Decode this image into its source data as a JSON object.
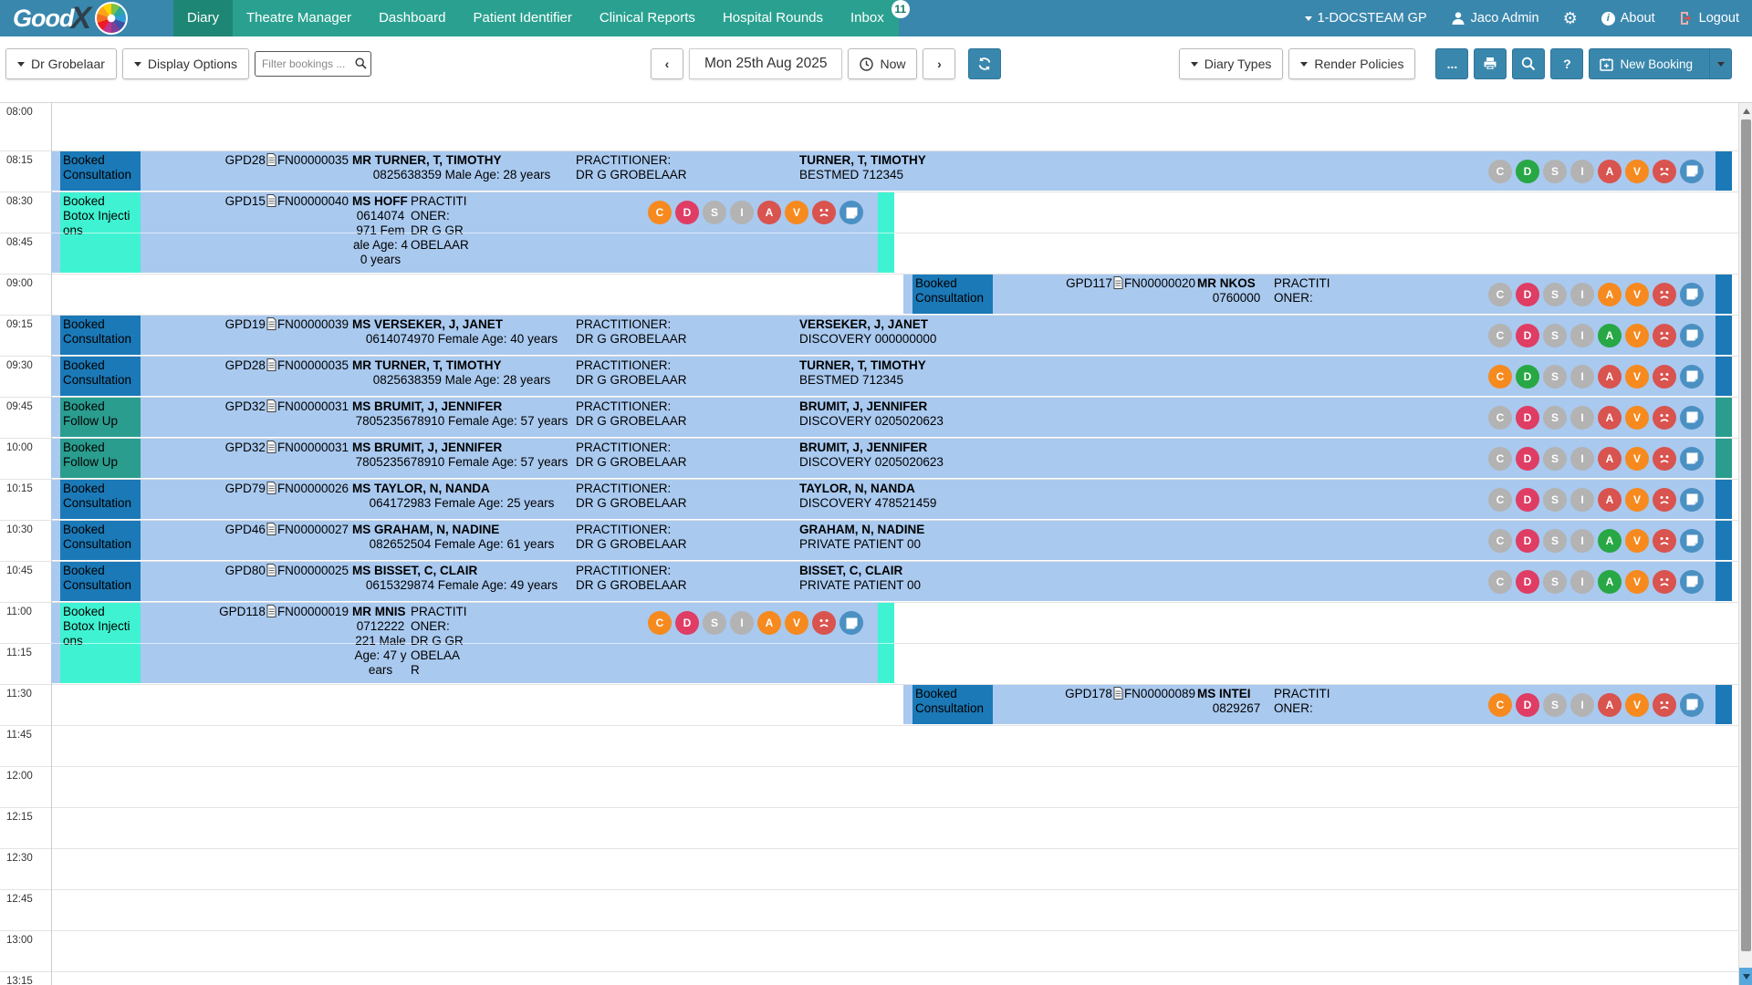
{
  "header": {
    "logo": {
      "good": "Good",
      "x": "X"
    },
    "nav": [
      {
        "label": "Diary",
        "active": true
      },
      {
        "label": "Theatre Manager"
      },
      {
        "label": "Dashboard"
      },
      {
        "label": "Patient Identifier"
      },
      {
        "label": "Clinical Reports"
      },
      {
        "label": "Hospital Rounds"
      },
      {
        "label": "Inbox",
        "badge": "11"
      }
    ],
    "right": {
      "account": "1-DOCSTEAM GP",
      "user": "Jaco Admin",
      "about": "About",
      "logout": "Logout"
    }
  },
  "toolbar": {
    "practitioner": "Dr Grobelaar",
    "display_options": "Display Options",
    "filter_placeholder": "Filter bookings ...",
    "date": "Mon 25th Aug 2025",
    "now": "Now",
    "diary_types": "Diary Types",
    "render_policies": "Render Policies",
    "more": "...",
    "help": "?",
    "new_booking": "New Booking"
  },
  "colors": {
    "header_blue": "#3a87ad",
    "menu_teal": "#2aa190",
    "menu_active": "#1d8674",
    "row_bg": "#a9c9ef",
    "consultation": "#1b79b7",
    "follow_up": "#2a9d8f",
    "botox": "#3ff3d2",
    "icon_gray": "#b3b3b3",
    "icon_green": "#28a745",
    "icon_red": "#d9534f",
    "icon_orange": "#f68a1f",
    "icon_crimson": "#df3d64",
    "icon_blue": "#4b90c2"
  },
  "grid": {
    "times": [
      "08:00",
      "08:15",
      "08:30",
      "08:45",
      "09:00",
      "09:15",
      "09:30",
      "09:45",
      "10:00",
      "10:15",
      "10:30",
      "10:45",
      "11:00",
      "11:15",
      "11:30",
      "11:45",
      "12:00",
      "12:15",
      "12:30",
      "12:45",
      "13:00",
      "13:15"
    ]
  },
  "bookings": [
    {
      "row": 1,
      "span": 1,
      "side": "full",
      "type": "consult",
      "type_lines": [
        "Booked",
        "Consultation"
      ],
      "file": "GPD28",
      "fn": "FN00000035",
      "name": "MR TURNER, T, TIMOTHY",
      "details": [
        "0825638359 Male Age: 28 years"
      ],
      "practitioner": [
        "PRACTITIONER:",
        "DR G GROBELAAR"
      ],
      "member": [
        "TURNER, T, TIMOTHY",
        "BESTMED 712345"
      ],
      "icons": [
        [
          "C",
          "gray"
        ],
        [
          "D",
          "green"
        ],
        [
          "S",
          "gray"
        ],
        [
          "I",
          "gray"
        ],
        [
          "A",
          "red"
        ],
        [
          "V",
          "orange"
        ],
        [
          "frown",
          "red"
        ],
        [
          "note",
          "blue"
        ]
      ]
    },
    {
      "row": 2,
      "span": 2,
      "side": "left",
      "type": "botox",
      "type_lines": [
        "Booked",
        "Botox Injecti",
        "ons"
      ],
      "file": "GPD15",
      "fn": "FN00000040",
      "name": "MS HOFF",
      "details": [
        "0614074",
        "971 Fem",
        "ale Age: 4",
        "0 years"
      ],
      "practitioner": [
        "PRACTITI",
        "ONER:",
        "DR G GR",
        "OBELAAR"
      ],
      "member": [],
      "icons": [
        [
          "C",
          "orange"
        ],
        [
          "D",
          "crimson"
        ],
        [
          "S",
          "gray"
        ],
        [
          "I",
          "gray"
        ],
        [
          "A",
          "red"
        ],
        [
          "V",
          "orange"
        ],
        [
          "frown",
          "red"
        ],
        [
          "note",
          "blue"
        ]
      ]
    },
    {
      "row": 4,
      "span": 1,
      "side": "right",
      "type": "consult",
      "type_lines": [
        "Booked",
        "Consultation"
      ],
      "file": "GPD117",
      "fn": "FN00000020",
      "name": "MR NKOS",
      "details": [
        "0760000"
      ],
      "practitioner": [
        "PRACTITI",
        "ONER:"
      ],
      "member": [],
      "icons": [
        [
          "C",
          "gray"
        ],
        [
          "D",
          "crimson"
        ],
        [
          "S",
          "gray"
        ],
        [
          "I",
          "gray"
        ],
        [
          "A",
          "orange"
        ],
        [
          "V",
          "orange"
        ],
        [
          "frown",
          "red"
        ],
        [
          "note",
          "blue"
        ]
      ]
    },
    {
      "row": 5,
      "span": 1,
      "side": "full",
      "type": "consult",
      "type_lines": [
        "Booked",
        "Consultation"
      ],
      "file": "GPD19",
      "fn": "FN00000039",
      "name": "MS VERSEKER, J, JANET",
      "details": [
        "0614074970 Female Age: 40 years"
      ],
      "practitioner": [
        "PRACTITIONER:",
        "DR G GROBELAAR"
      ],
      "member": [
        "VERSEKER, J, JANET",
        "DISCOVERY 000000000"
      ],
      "icons": [
        [
          "C",
          "gray"
        ],
        [
          "D",
          "crimson"
        ],
        [
          "S",
          "gray"
        ],
        [
          "I",
          "gray"
        ],
        [
          "A",
          "green"
        ],
        [
          "V",
          "orange"
        ],
        [
          "frown",
          "red"
        ],
        [
          "note",
          "blue"
        ]
      ]
    },
    {
      "row": 6,
      "span": 1,
      "side": "full",
      "type": "consult",
      "type_lines": [
        "Booked",
        "Consultation"
      ],
      "file": "GPD28",
      "fn": "FN00000035",
      "name": "MR TURNER, T, TIMOTHY",
      "details": [
        "0825638359 Male Age: 28 years"
      ],
      "practitioner": [
        "PRACTITIONER:",
        "DR G GROBELAAR"
      ],
      "member": [
        "TURNER, T, TIMOTHY",
        "BESTMED 712345"
      ],
      "icons": [
        [
          "C",
          "orange"
        ],
        [
          "D",
          "green"
        ],
        [
          "S",
          "gray"
        ],
        [
          "I",
          "gray"
        ],
        [
          "A",
          "red"
        ],
        [
          "V",
          "orange"
        ],
        [
          "frown",
          "red"
        ],
        [
          "note",
          "blue"
        ]
      ]
    },
    {
      "row": 7,
      "span": 1,
      "side": "full",
      "type": "followup",
      "type_lines": [
        "Booked",
        "Follow Up"
      ],
      "file": "GPD32",
      "fn": "FN00000031",
      "name": "MS BRUMIT, J, JENNIFER",
      "details": [
        "7805235678910 Female Age: 57 years"
      ],
      "practitioner": [
        "PRACTITIONER:",
        "DR G GROBELAAR"
      ],
      "member": [
        "BRUMIT, J, JENNIFER",
        "DISCOVERY 0205020623"
      ],
      "icons": [
        [
          "C",
          "gray"
        ],
        [
          "D",
          "crimson"
        ],
        [
          "S",
          "gray"
        ],
        [
          "I",
          "gray"
        ],
        [
          "A",
          "red"
        ],
        [
          "V",
          "orange"
        ],
        [
          "frown",
          "red"
        ],
        [
          "note",
          "blue"
        ]
      ]
    },
    {
      "row": 8,
      "span": 1,
      "side": "full",
      "type": "followup",
      "type_lines": [
        "Booked",
        "Follow Up"
      ],
      "file": "GPD32",
      "fn": "FN00000031",
      "name": "MS BRUMIT, J, JENNIFER",
      "details": [
        "7805235678910 Female Age: 57 years"
      ],
      "practitioner": [
        "PRACTITIONER:",
        "DR G GROBELAAR"
      ],
      "member": [
        "BRUMIT, J, JENNIFER",
        "DISCOVERY 0205020623"
      ],
      "icons": [
        [
          "C",
          "gray"
        ],
        [
          "D",
          "crimson"
        ],
        [
          "S",
          "gray"
        ],
        [
          "I",
          "gray"
        ],
        [
          "A",
          "red"
        ],
        [
          "V",
          "orange"
        ],
        [
          "frown",
          "red"
        ],
        [
          "note",
          "blue"
        ]
      ]
    },
    {
      "row": 9,
      "span": 1,
      "side": "full",
      "type": "consult",
      "type_lines": [
        "Booked",
        "Consultation"
      ],
      "file": "GPD79",
      "fn": "FN00000026",
      "name": "MS TAYLOR, N, NANDA",
      "details": [
        "064172983 Female Age: 25 years"
      ],
      "practitioner": [
        "PRACTITIONER:",
        "DR G GROBELAAR"
      ],
      "member": [
        "TAYLOR, N, NANDA",
        "DISCOVERY 478521459"
      ],
      "icons": [
        [
          "C",
          "gray"
        ],
        [
          "D",
          "crimson"
        ],
        [
          "S",
          "gray"
        ],
        [
          "I",
          "gray"
        ],
        [
          "A",
          "red"
        ],
        [
          "V",
          "orange"
        ],
        [
          "frown",
          "red"
        ],
        [
          "note",
          "blue"
        ]
      ]
    },
    {
      "row": 10,
      "span": 1,
      "side": "full",
      "type": "consult",
      "type_lines": [
        "Booked",
        "Consultation"
      ],
      "file": "GPD46",
      "fn": "FN00000027",
      "name": "MS GRAHAM, N, NADINE",
      "details": [
        "082652504 Female Age: 61 years"
      ],
      "practitioner": [
        "PRACTITIONER:",
        "DR G GROBELAAR"
      ],
      "member": [
        "GRAHAM, N, NADINE",
        "PRIVATE PATIENT 00"
      ],
      "icons": [
        [
          "C",
          "gray"
        ],
        [
          "D",
          "crimson"
        ],
        [
          "S",
          "gray"
        ],
        [
          "I",
          "gray"
        ],
        [
          "A",
          "green"
        ],
        [
          "V",
          "orange"
        ],
        [
          "frown",
          "red"
        ],
        [
          "note",
          "blue"
        ]
      ]
    },
    {
      "row": 11,
      "span": 1,
      "side": "full",
      "type": "consult",
      "type_lines": [
        "Booked",
        "Consultation"
      ],
      "file": "GPD80",
      "fn": "FN00000025",
      "name": "MS BISSET, C, CLAIR",
      "details": [
        "0615329874 Female Age: 49 years"
      ],
      "practitioner": [
        "PRACTITIONER:",
        "DR G GROBELAAR"
      ],
      "member": [
        "BISSET, C, CLAIR",
        "PRIVATE PATIENT 00"
      ],
      "icons": [
        [
          "C",
          "gray"
        ],
        [
          "D",
          "crimson"
        ],
        [
          "S",
          "gray"
        ],
        [
          "I",
          "gray"
        ],
        [
          "A",
          "green"
        ],
        [
          "V",
          "orange"
        ],
        [
          "frown",
          "red"
        ],
        [
          "note",
          "blue"
        ]
      ]
    },
    {
      "row": 12,
      "span": 2,
      "side": "left",
      "type": "botox",
      "type_lines": [
        "Booked",
        "Botox Injecti",
        "ons"
      ],
      "file": "GPD118",
      "fn": "FN00000019",
      "name": "MR MNIS",
      "details": [
        "0712222",
        "221 Male",
        "Age: 47 y",
        "ears"
      ],
      "practitioner": [
        "PRACTITI",
        "ONER:",
        "DR G GR",
        "OBELAA",
        "R"
      ],
      "member": [],
      "icons": [
        [
          "C",
          "orange"
        ],
        [
          "D",
          "crimson"
        ],
        [
          "S",
          "gray"
        ],
        [
          "I",
          "gray"
        ],
        [
          "A",
          "orange"
        ],
        [
          "V",
          "orange"
        ],
        [
          "frown",
          "red"
        ],
        [
          "note",
          "blue"
        ]
      ]
    },
    {
      "row": 14,
      "span": 1,
      "side": "right",
      "type": "consult",
      "type_lines": [
        "Booked",
        "Consultation"
      ],
      "file": "GPD178",
      "fn": "FN00000089",
      "name": "MS INTEI",
      "details": [
        "0829267"
      ],
      "practitioner": [
        "PRACTITI",
        "ONER:"
      ],
      "member": [],
      "icons": [
        [
          "C",
          "orange"
        ],
        [
          "D",
          "crimson"
        ],
        [
          "S",
          "gray"
        ],
        [
          "I",
          "gray"
        ],
        [
          "A",
          "red"
        ],
        [
          "V",
          "orange"
        ],
        [
          "frown",
          "red"
        ],
        [
          "note",
          "blue"
        ]
      ]
    }
  ]
}
